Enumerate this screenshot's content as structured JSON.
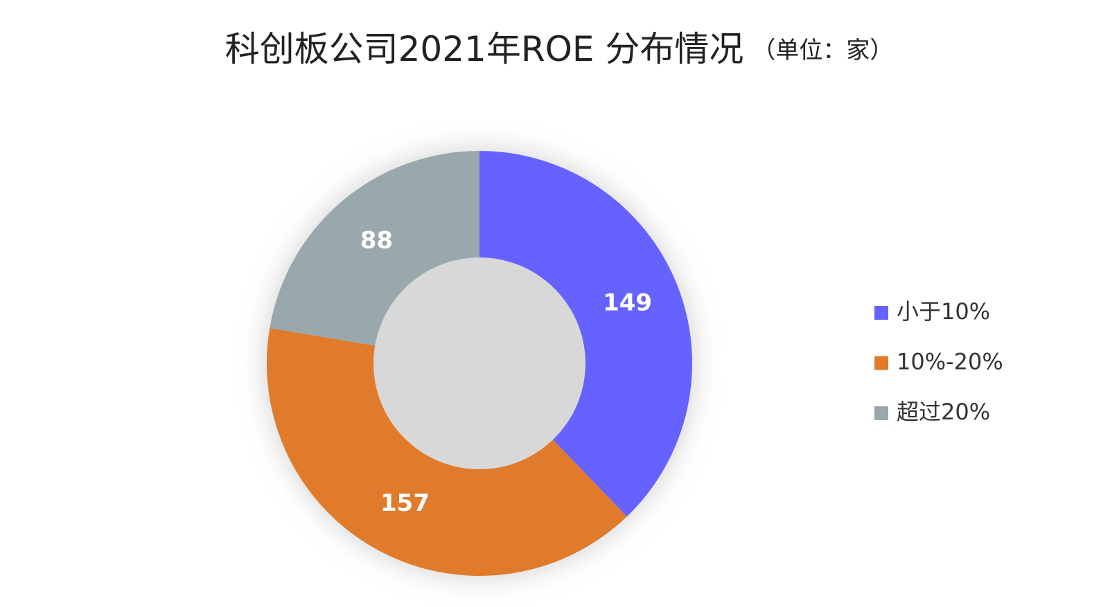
{
  "chart_data": {
    "type": "donut",
    "title": "科创板公司2021年ROE 分布情况",
    "subtitle": "（单位：家）",
    "categories": [
      "小于10%",
      "10%-20%",
      "超过20%"
    ],
    "values": [
      149,
      157,
      88
    ],
    "colors": [
      "#6662ff",
      "#e07b2c",
      "#98a8ad"
    ],
    "legend": "right"
  }
}
